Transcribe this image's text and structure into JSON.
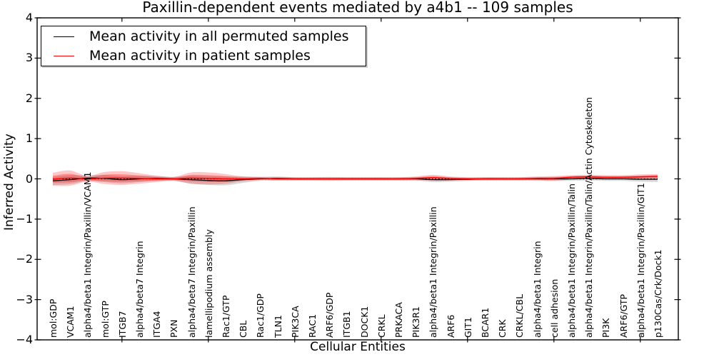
{
  "figure": {
    "background": "#ffffff"
  },
  "title": "Paxillin-dependent events mediated by a4b1 -- 109 samples",
  "axes": {
    "xlabel": "Cellular Entities",
    "ylabel": "Inferred Activity"
  },
  "legend": {
    "items": [
      {
        "label": "Mean activity in all permuted samples",
        "color": "#000000"
      },
      {
        "label": "Mean activity in patient samples",
        "color": "#ff0000"
      }
    ]
  },
  "chart_data": {
    "type": "line",
    "title": "Paxillin-dependent events mediated by a4b1 -- 109 samples",
    "xlabel": "Cellular Entities",
    "ylabel": "Inferred Activity",
    "ylim": [
      -4,
      4
    ],
    "yticks": [
      4,
      3,
      2,
      1,
      0,
      -1,
      -2,
      -3,
      -4
    ],
    "x_major_ticks_1based": [
      5,
      10,
      15,
      20,
      25,
      30,
      35
    ],
    "grid": false,
    "legend_position": "upper left",
    "zero_reference_line": {
      "style": "dotted",
      "color": "#000000",
      "value": 0
    },
    "categories": [
      "mol:GDP",
      "VCAM1",
      "alpha4/beta1 Integrin/Paxillin/VCAM1",
      "mol:GTP",
      "ITGB7",
      "alpha4/beta7 Integrin",
      "ITGA4",
      "PXN",
      "alpha4/beta7 Integrin/Paxillin",
      "lamellipodium assembly",
      "Rac1/GTP",
      "CBL",
      "Rac1/GDP",
      "TLN1",
      "PIK3CA",
      "RAC1",
      "ARF6/GDP",
      "ITGB1",
      "DOCK1",
      "CRKL",
      "PRKACA",
      "PIK3R1",
      "alpha4/beta1 Integrin/Paxillin",
      "ARF6",
      "GIT1",
      "BCAR1",
      "CRK",
      "CRKL/CBL",
      "alpha4/beta1 Integrin",
      "cell adhesion",
      "alpha4/beta1 Integrin/Paxillin/Talin",
      "alpha4/beta1 Integrin/Paxillin/Talin/Actin Cytoskeleton",
      "PI3K",
      "ARF6/GTP",
      "alpha4/beta1 Integrin/Paxillin/GIT1",
      "p130Cas/Crk/Dock1"
    ],
    "series": [
      {
        "name": "Mean activity in all permuted samples",
        "color": "#000000",
        "band_color": "#808080",
        "band_opacity": 0.3,
        "values": [
          -0.05,
          -0.02,
          0.02,
          0.01,
          -0.02,
          0.0,
          0.01,
          0.0,
          -0.02,
          -0.04,
          -0.05,
          -0.02,
          0.0,
          0.01,
          0.0,
          0.0,
          0.0,
          0.0,
          0.0,
          0.0,
          0.0,
          0.0,
          -0.02,
          -0.02,
          -0.01,
          0.0,
          0.0,
          0.0,
          0.0,
          0.0,
          0.0,
          0.01,
          0.0,
          0.0,
          -0.01,
          -0.01
        ],
        "band_halfwidths": [
          0.1,
          0.11,
          0.07,
          0.09,
          0.09,
          0.08,
          0.06,
          0.05,
          0.1,
          0.11,
          0.11,
          0.08,
          0.05,
          0.05,
          0.04,
          0.04,
          0.05,
          0.04,
          0.04,
          0.04,
          0.04,
          0.04,
          0.06,
          0.05,
          0.04,
          0.04,
          0.04,
          0.04,
          0.04,
          0.05,
          0.05,
          0.05,
          0.05,
          0.05,
          0.06,
          0.07
        ]
      },
      {
        "name": "Mean activity in patient samples",
        "color": "#ff0000",
        "band_color": "#ff0000",
        "band_opacity": 0.22,
        "values": [
          -0.01,
          0.02,
          0.0,
          0.02,
          0.02,
          0.01,
          0.0,
          0.0,
          0.02,
          0.01,
          0.0,
          0.0,
          0.01,
          0.0,
          0.0,
          0.0,
          0.0,
          0.0,
          0.0,
          0.0,
          0.0,
          0.01,
          0.03,
          0.01,
          0.0,
          0.0,
          0.0,
          0.0,
          0.01,
          0.01,
          0.04,
          0.05,
          0.04,
          0.04,
          0.05,
          0.06
        ],
        "band_halfwidths": [
          0.16,
          0.19,
          0.07,
          0.15,
          0.17,
          0.13,
          0.08,
          0.05,
          0.14,
          0.15,
          0.12,
          0.06,
          0.04,
          0.04,
          0.04,
          0.04,
          0.04,
          0.04,
          0.04,
          0.04,
          0.04,
          0.05,
          0.07,
          0.05,
          0.04,
          0.04,
          0.04,
          0.04,
          0.05,
          0.06,
          0.05,
          0.05,
          0.05,
          0.05,
          0.06,
          0.06
        ]
      }
    ]
  }
}
